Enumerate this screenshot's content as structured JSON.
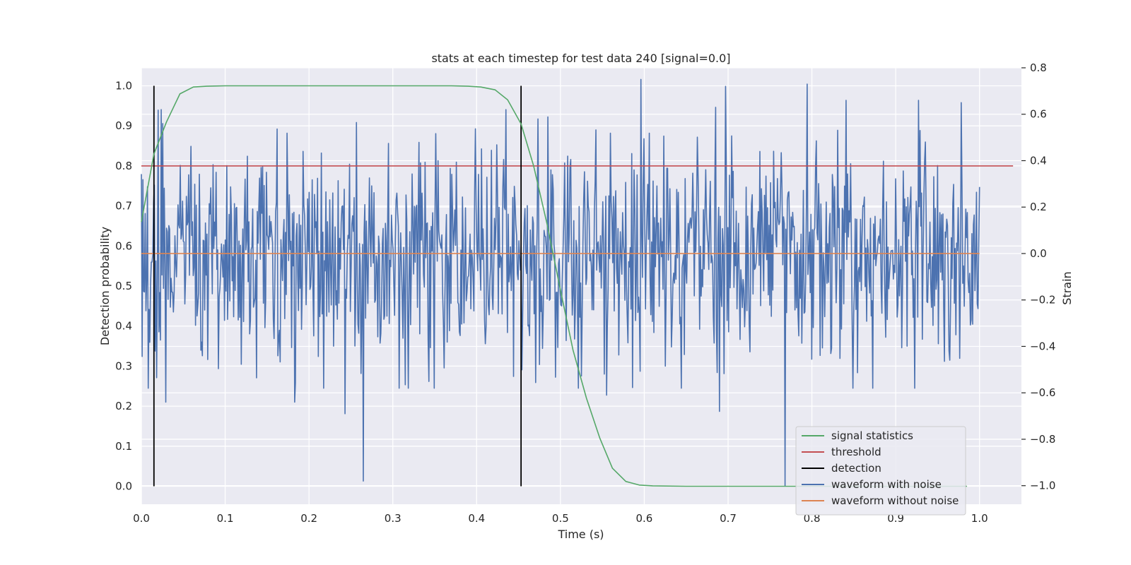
{
  "chart_data": {
    "type": "line",
    "title": "stats at each timestep for test data 240 [signal=0.0]",
    "xlabel": "Time (s)",
    "ylabel": "Detection probability",
    "y2label": "Strain",
    "xlim": [
      0.0,
      1.05
    ],
    "ylim": [
      -0.045,
      1.045
    ],
    "y2lim": [
      -1.08,
      0.8
    ],
    "x_ticks": [
      "0.0",
      "0.1",
      "0.2",
      "0.3",
      "0.4",
      "0.5",
      "0.6",
      "0.7",
      "0.8",
      "0.9",
      "1.0"
    ],
    "y_ticks": [
      "0.0",
      "0.1",
      "0.2",
      "0.3",
      "0.4",
      "0.5",
      "0.6",
      "0.7",
      "0.8",
      "0.9",
      "1.0"
    ],
    "y2_ticks": [
      "−1.0",
      "−0.8",
      "−0.6",
      "−0.4",
      "−0.2",
      "0.0",
      "0.2",
      "0.4",
      "0.6",
      "0.8"
    ],
    "grid": true,
    "legend_position": "lower-right",
    "background": "#eaeaf2",
    "series": [
      {
        "name": "signal statistics",
        "axis": "left",
        "color": "#55a868",
        "x": [
          0.0,
          0.015,
          0.03,
          0.046,
          0.062,
          0.078,
          0.1,
          0.2,
          0.3,
          0.37,
          0.39,
          0.405,
          0.422,
          0.437,
          0.453,
          0.468,
          0.484,
          0.5,
          0.515,
          0.531,
          0.547,
          0.562,
          0.578,
          0.594,
          0.61,
          0.65,
          0.7,
          0.8,
          0.9,
          0.985
        ],
        "y": [
          0.66,
          0.83,
          0.91,
          0.98,
          0.997,
          0.999,
          1.0,
          1.0,
          1.0,
          1.0,
          0.999,
          0.997,
          0.99,
          0.965,
          0.905,
          0.8,
          0.655,
          0.49,
          0.34,
          0.22,
          0.12,
          0.045,
          0.012,
          0.003,
          0.001,
          0.0,
          0.0,
          0.0,
          0.0,
          0.0
        ]
      },
      {
        "name": "threshold",
        "axis": "left",
        "color": "#c44e52",
        "x": [
          0.0,
          1.04
        ],
        "y": [
          0.8,
          0.8
        ]
      },
      {
        "name": "detection",
        "axis": "left",
        "color": "#000000",
        "type": "vlines",
        "x": [
          0.015,
          0.453
        ],
        "ymin": 0.0,
        "ymax": 1.0
      },
      {
        "name": "waveform with noise",
        "axis": "right",
        "color": "#4c72b0",
        "x_start": 0.0,
        "x_end": 1.0,
        "noise_std": 0.24,
        "noise_seed": 240,
        "extremes": [
          {
            "x": 0.029,
            "y": -0.64
          },
          {
            "x": 0.183,
            "y": -0.64
          },
          {
            "x": 0.243,
            "y": -0.69
          },
          {
            "x": 0.265,
            "y": -0.98
          },
          {
            "x": 0.555,
            "y": -0.61
          },
          {
            "x": 0.69,
            "y": -0.68
          },
          {
            "x": 0.768,
            "y": -1.0
          },
          {
            "x": 0.596,
            "y": 0.75
          },
          {
            "x": 0.685,
            "y": 0.63
          },
          {
            "x": 0.697,
            "y": 0.72
          },
          {
            "x": 0.794,
            "y": 0.73
          },
          {
            "x": 0.841,
            "y": 0.66
          },
          {
            "x": 0.927,
            "y": 0.66
          },
          {
            "x": 0.978,
            "y": 0.65
          }
        ]
      },
      {
        "name": "waveform without noise",
        "axis": "right",
        "color": "#dd8452",
        "x": [
          0.0,
          1.0
        ],
        "y": [
          0.0,
          0.0
        ]
      }
    ]
  }
}
